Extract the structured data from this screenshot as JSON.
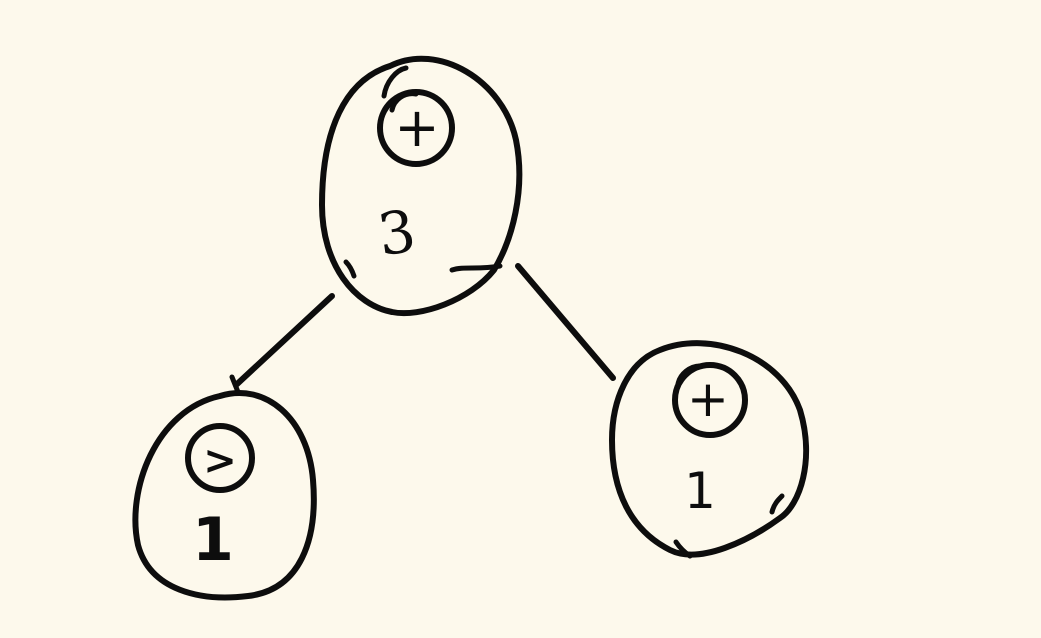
{
  "diagram": {
    "background_color": "#fdf9ec",
    "ink_color": "#0d0d0d",
    "nodes": [
      {
        "id": "root",
        "symbol": "+",
        "count": "3"
      },
      {
        "id": "left-child",
        "symbol": ">",
        "count": "1"
      },
      {
        "id": "right-child",
        "symbol": "+",
        "count": "1"
      }
    ],
    "edges": [
      {
        "from": "root",
        "to": "left-child"
      },
      {
        "from": "root",
        "to": "right-child"
      }
    ]
  }
}
